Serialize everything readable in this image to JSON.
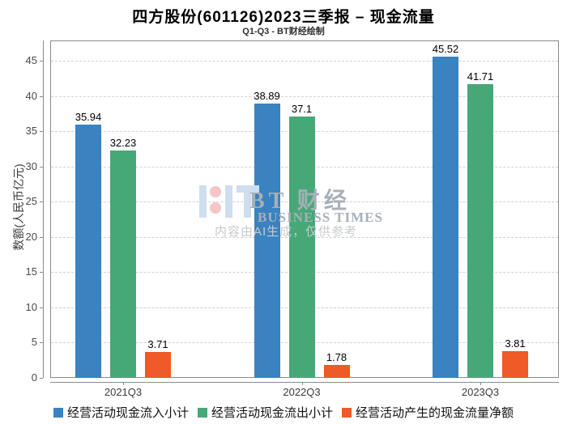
{
  "title": "四方股份(601126)2023三季报 – 现金流量",
  "subtitle": "Q1-Q3 - BT财经绘制",
  "watermark": {
    "brand_cn": "BT 财经",
    "brand_en": "BUSINESS TIMES",
    "disclaimer": "内容由AI生成，仅供参考"
  },
  "chart_data": {
    "type": "bar",
    "title": "四方股份(601126)2023三季报 – 现金流量",
    "subtitle": "Q1-Q3 - BT财经绘制",
    "categories": [
      "2021Q3",
      "2022Q3",
      "2023Q3"
    ],
    "series": [
      {
        "name": "经营活动现金流入小计",
        "color": "#3a82c0",
        "values": [
          35.94,
          38.89,
          45.52
        ]
      },
      {
        "name": "经营活动现金流出小计",
        "color": "#47a877",
        "values": [
          32.23,
          37.1,
          41.71
        ]
      },
      {
        "name": "经营活动产生的现金流量净额",
        "color": "#ee5a28",
        "values": [
          3.71,
          1.78,
          3.81
        ]
      }
    ],
    "xlabel": "",
    "ylabel": "数额(人民币亿元)",
    "ylim": [
      0,
      47.9
    ],
    "yticks": [
      0,
      5,
      10,
      15,
      20,
      25,
      30,
      35,
      40,
      45
    ],
    "grid": true,
    "gridline_style": "dashed",
    "legend_position": "bottom"
  }
}
